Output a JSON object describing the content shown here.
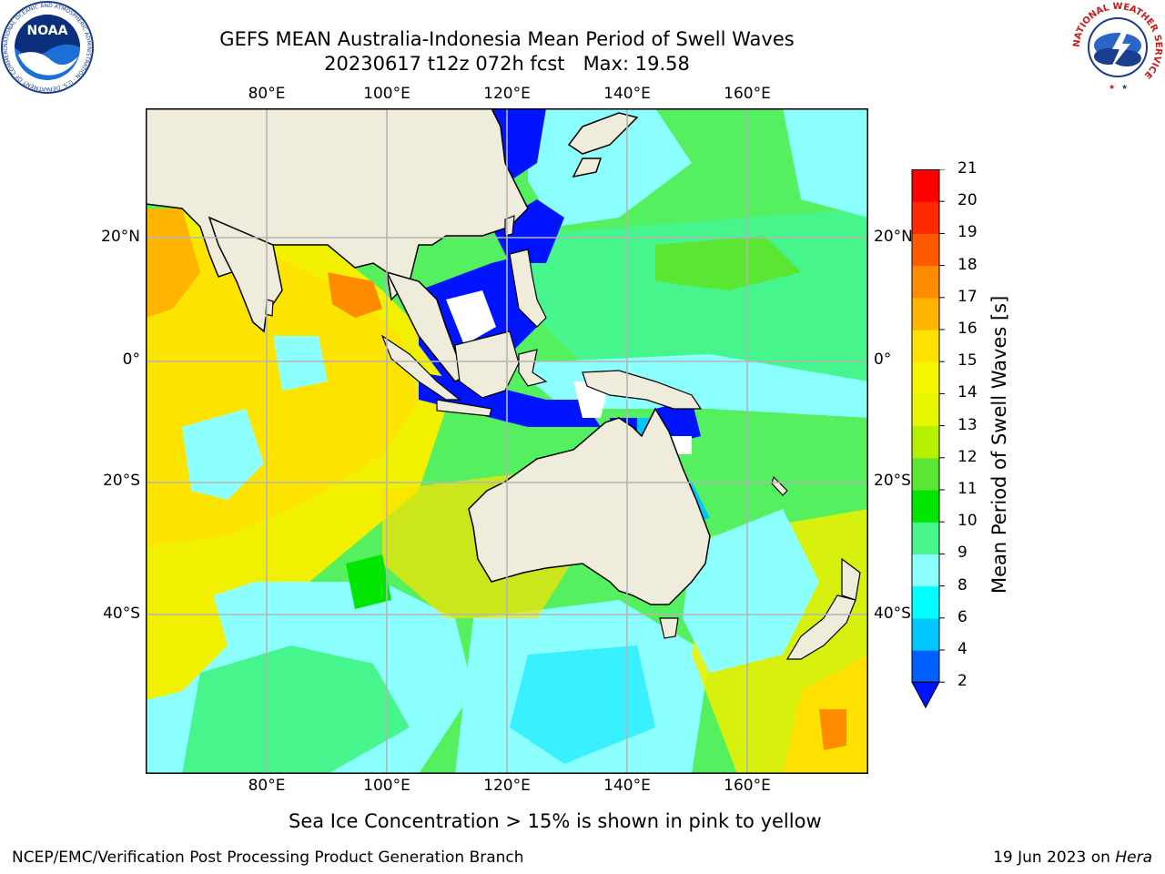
{
  "title": {
    "line1": "GEFS MEAN Australia-Indonesia Mean Period of Swell Waves",
    "line2": "20230617 t12z 072h fcst   Max: 19.58"
  },
  "map": {
    "lon_ticks": [
      "80°E",
      "100°E",
      "120°E",
      "140°E",
      "160°E"
    ],
    "lat_ticks": [
      "20°N",
      "0°",
      "20°S",
      "40°S"
    ],
    "colors": {
      "land": "#efecdc",
      "ocean_background": "#55f060",
      "grid": "#b4b4b4",
      "coast": "#000000"
    }
  },
  "colorbar": {
    "title": "Mean Period of Swell Waves [s]",
    "levels": [
      "2",
      "4",
      "6",
      "8",
      "9",
      "10",
      "11",
      "12",
      "13",
      "14",
      "15",
      "16",
      "17",
      "18",
      "19",
      "20",
      "21"
    ],
    "colors": [
      "#0060ff",
      "#00c8ff",
      "#00ffff",
      "#8cffff",
      "#46f58c",
      "#00e600",
      "#5ae632",
      "#b4f000",
      "#e6f500",
      "#f5f500",
      "#ffe100",
      "#ffb400",
      "#ff8c00",
      "#ff5a00",
      "#ff2800",
      "#ff0000"
    ],
    "under_color": "#0014ff"
  },
  "note": "Sea Ice Concentration > 15% is shown in pink to yellow",
  "footer": {
    "left": "NCEP/EMC/Verification Post Processing Product Generation Branch",
    "date": "19 Jun 2023 on ",
    "host": "Hera"
  },
  "logos": {
    "noaa": {
      "text": "NOAA",
      "ring_text": "NATIONAL OCEANIC AND ATMOSPHERIC ADMINISTRATION · U.S. DEPARTMENT OF COMMERCE"
    },
    "nws": {
      "ring_text": "NATIONAL WEATHER SERVICE"
    }
  }
}
